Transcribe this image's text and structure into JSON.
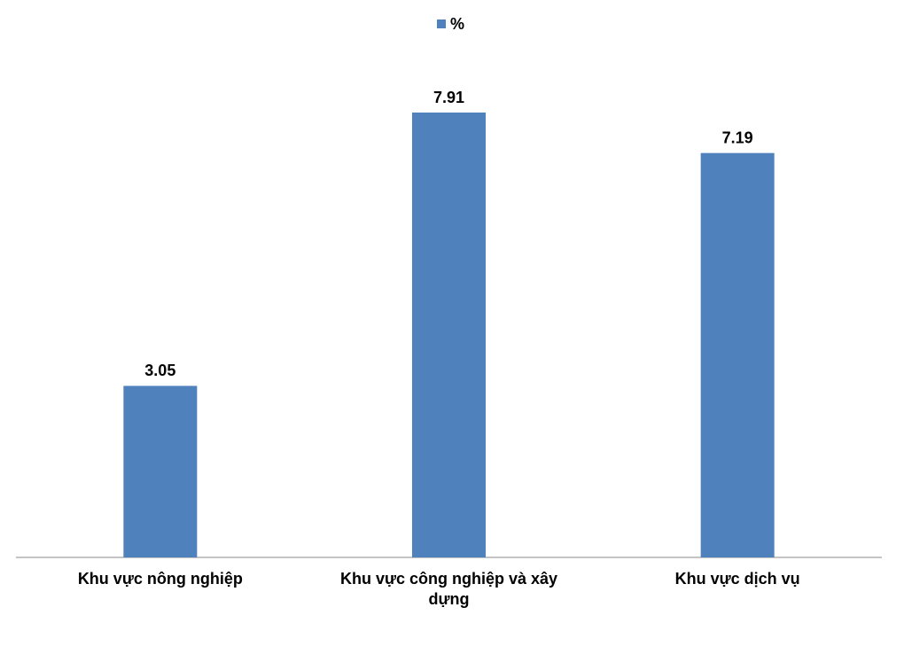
{
  "chart_data": {
    "type": "bar",
    "categories": [
      "Khu vực nông nghiệp",
      "Khu vực công nghiệp và xây dựng",
      "Khu vực dịch vụ"
    ],
    "series": [
      {
        "name": "%",
        "color": "#4f81bd",
        "values": [
          3.05,
          7.91,
          7.19
        ]
      }
    ],
    "legend": "top"
  }
}
